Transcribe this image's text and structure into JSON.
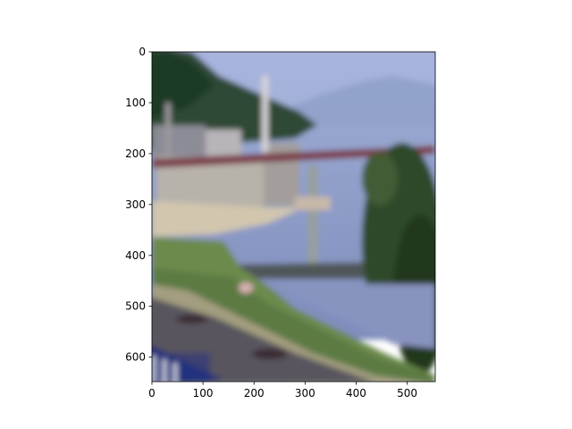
{
  "figure": {
    "background_color": "#ffffff",
    "image_description_colors": {
      "sky": "#a8b6dc",
      "mountain_dark": "#2f4a34",
      "water": "#8e9ac8",
      "bridge": "#7a3e48",
      "grass": "#6f8a4c",
      "road": "#5a5660",
      "railing": "#1f2e78"
    }
  },
  "axes": {
    "x_ticks": [
      "0",
      "100",
      "200",
      "300",
      "400",
      "500"
    ],
    "x_tick_values": [
      0,
      100,
      200,
      300,
      400,
      500
    ],
    "y_ticks": [
      "0",
      "100",
      "200",
      "300",
      "400",
      "500",
      "600"
    ],
    "y_tick_values": [
      0,
      100,
      200,
      300,
      400,
      500,
      600
    ],
    "x_range": [
      0,
      555
    ],
    "y_range": [
      0,
      648
    ]
  }
}
